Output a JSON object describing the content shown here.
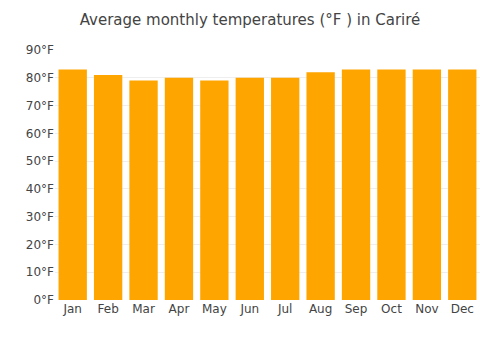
{
  "chart_data": {
    "type": "bar",
    "title": "Average monthly temperatures (°F ) in Cariré",
    "categories": [
      "Jan",
      "Feb",
      "Mar",
      "Apr",
      "May",
      "Jun",
      "Jul",
      "Aug",
      "Sep",
      "Oct",
      "Nov",
      "Dec"
    ],
    "values": [
      83,
      81,
      79,
      80,
      79,
      80,
      80,
      82,
      83,
      83,
      83,
      83
    ],
    "color": "#FFA500",
    "ylim": [
      0,
      90
    ],
    "yticks": [
      {
        "value": 0,
        "label": "0°F"
      },
      {
        "value": 10,
        "label": "10°F"
      },
      {
        "value": 20,
        "label": "20°F"
      },
      {
        "value": 30,
        "label": "30°F"
      },
      {
        "value": 40,
        "label": "40°F"
      },
      {
        "value": 50,
        "label": "50°F"
      },
      {
        "value": 60,
        "label": "60°F"
      },
      {
        "value": 70,
        "label": "70°F"
      },
      {
        "value": 80,
        "label": "80°F"
      },
      {
        "value": 90,
        "label": "90°F"
      }
    ],
    "grid": true
  }
}
